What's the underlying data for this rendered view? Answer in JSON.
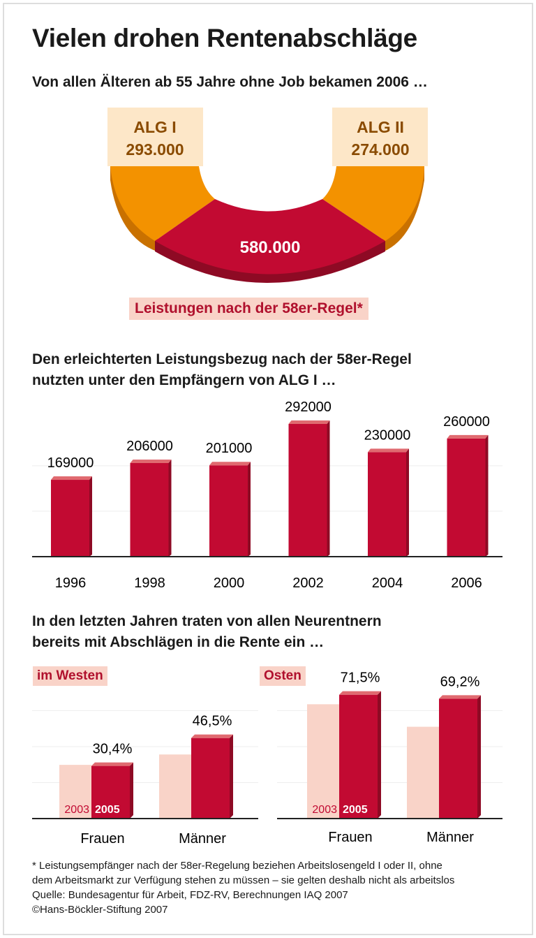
{
  "title": "Vielen drohen Rentenabschläge",
  "subtitle1": "Von allen Älteren ab 55 Jahre ohne Job bekamen 2006 …",
  "subtitle2_line1": "Den erleichterten Leistungsbezug nach der 58er-Regel",
  "subtitle2_line2": "nutzten unter den Empfängern von ALG I …",
  "subtitle3_line1": "In den letzten Jahren traten von allen Neurentnern",
  "subtitle3_line2": "bereits mit Abschlägen in die Rente ein …",
  "colors": {
    "alg": "#f39200",
    "alg_light": "#fde7c8",
    "rule58": "#c20a32",
    "rule58_label_bg": "#f9d3c8",
    "bar_2003": "#f9d3c8",
    "bar_2005": "#c20a32"
  },
  "chart_data": [
    {
      "type": "pie",
      "variant": "half-donut",
      "slices": [
        {
          "name": "ALG I",
          "label": "293.000",
          "value": 293000
        },
        {
          "name": "58er-Regel",
          "label": "580.000",
          "value": 580000
        },
        {
          "name": "ALG II",
          "label": "274.000",
          "value": 274000
        }
      ],
      "caption": "Leistungen nach der 58er-Regel*"
    },
    {
      "type": "bar",
      "categories": [
        "1996",
        "1998",
        "2000",
        "2002",
        "2004",
        "2006"
      ],
      "values": [
        169000,
        206000,
        201000,
        292000,
        230000,
        260000
      ],
      "labels": [
        "169.000",
        "206.000",
        "201.000",
        "292.000",
        "230.000",
        "260.000"
      ],
      "ylim": [
        0,
        300000
      ],
      "grid": true
    },
    {
      "type": "bar",
      "panel": "im Westen",
      "categories": [
        "Frauen",
        "Männer"
      ],
      "series": [
        {
          "name": "2003",
          "values": [
            31,
            37
          ]
        },
        {
          "name": "2005",
          "values": [
            30.4,
            46.5
          ],
          "labels": [
            "30,4%",
            "46,5%"
          ]
        }
      ],
      "ylim": [
        0,
        80
      ],
      "grid": true
    },
    {
      "type": "bar",
      "panel": "Osten",
      "categories": [
        "Frauen",
        "Männer"
      ],
      "series": [
        {
          "name": "2003",
          "values": [
            66,
            53
          ]
        },
        {
          "name": "2005",
          "values": [
            71.5,
            69.2
          ],
          "labels": [
            "71,5%",
            "69,2%"
          ]
        }
      ],
      "ylim": [
        0,
        80
      ],
      "grid": true
    }
  ],
  "footnote": [
    "* Leistungsempfänger nach der 58er-Regelung beziehen Arbeitslosengeld I oder II, ohne",
    "dem Arbeitsmarkt zur Verfügung stehen zu müssen – sie gelten deshalb nicht als arbeitslos",
    "Quelle: Bundesagentur für Arbeit, FDZ-RV, Berechnungen IAQ 2007",
    "©Hans-Böckler-Stiftung 2007"
  ]
}
